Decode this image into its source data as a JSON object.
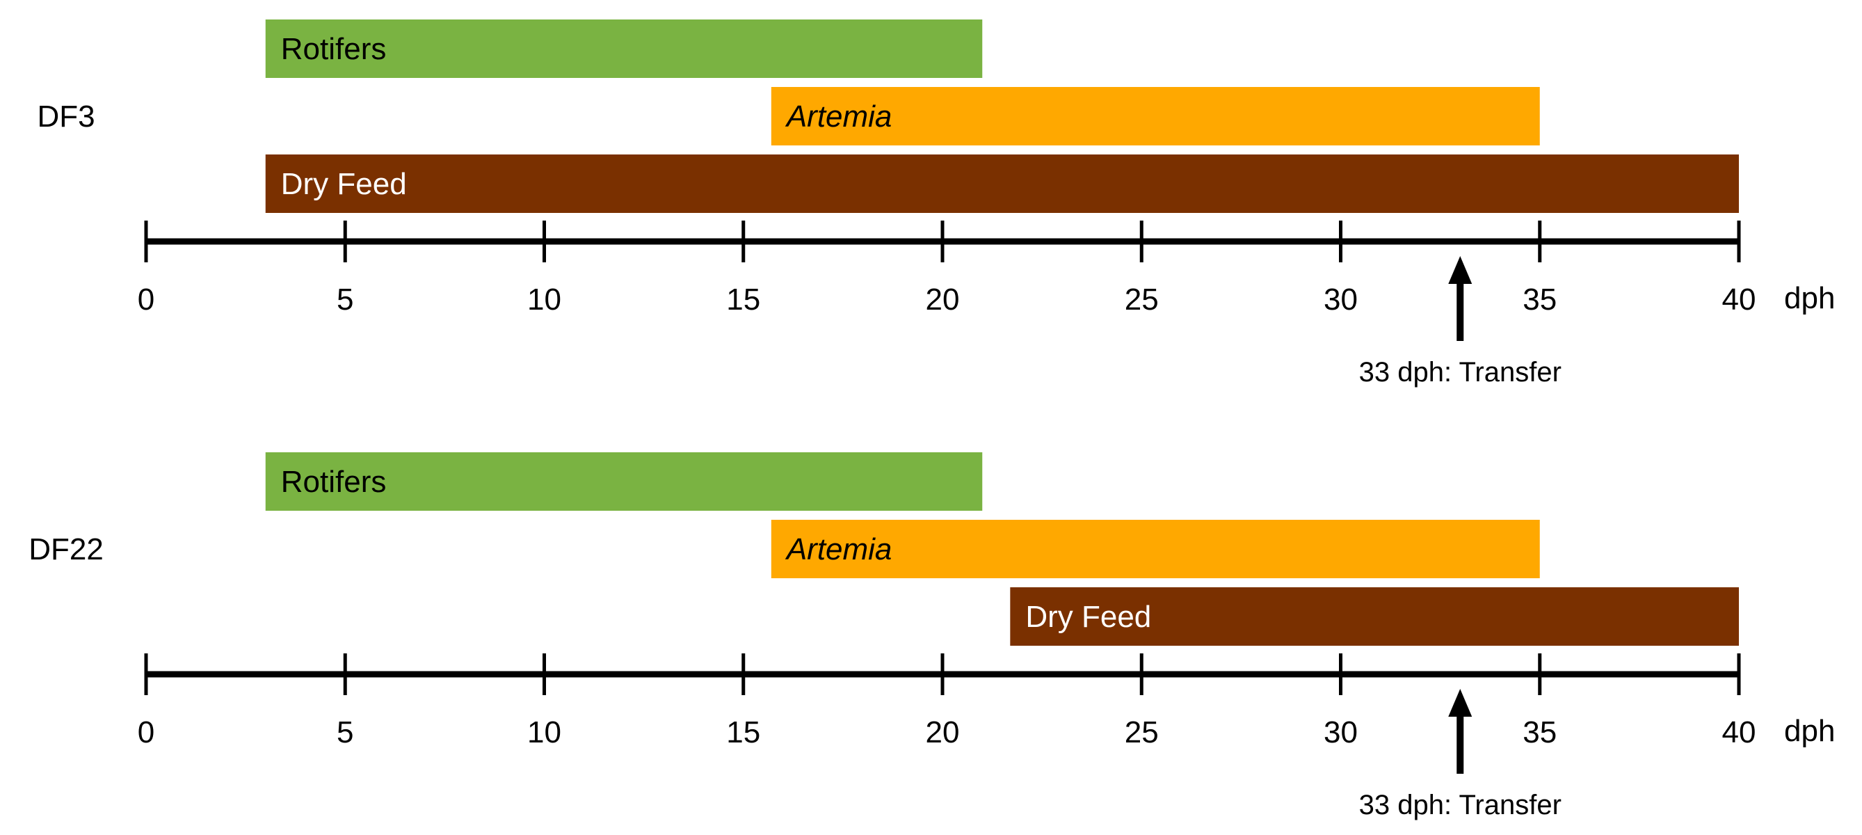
{
  "diagram": {
    "axis_unit": "dph",
    "ticks": [
      0,
      5,
      10,
      15,
      20,
      25,
      30,
      35,
      40
    ],
    "colors": {
      "rotifers": "#7ab342",
      "artemia": "#ffa800",
      "dry_feed": "#7a3000",
      "axis": "#000000",
      "text": "#000000",
      "bar_text_light": "#ffffff"
    },
    "panels": [
      {
        "id": "df3",
        "label": "DF3",
        "bars": [
          {
            "name": "Rotifers",
            "start": 3,
            "end": 21,
            "color_key": "rotifers",
            "italic": false,
            "light_text": false
          },
          {
            "name": "Artemia",
            "start": 15.7,
            "end": 35,
            "color_key": "artemia",
            "italic": true,
            "light_text": false
          },
          {
            "name": "Dry Feed",
            "start": 3,
            "end": 40,
            "color_key": "dry_feed",
            "italic": false,
            "light_text": true
          }
        ],
        "marker": {
          "at": 33,
          "label": "33 dph: Transfer"
        }
      },
      {
        "id": "df22",
        "label": "DF22",
        "bars": [
          {
            "name": "Rotifers",
            "start": 3,
            "end": 21,
            "color_key": "rotifers",
            "italic": false,
            "light_text": false
          },
          {
            "name": "Artemia",
            "start": 15.7,
            "end": 35,
            "color_key": "artemia",
            "italic": true,
            "light_text": false
          },
          {
            "name": "Dry Feed",
            "start": 21.7,
            "end": 40,
            "color_key": "dry_feed",
            "italic": false,
            "light_text": true
          }
        ],
        "marker": {
          "at": 33,
          "label": "33 dph: Transfer"
        }
      }
    ]
  }
}
